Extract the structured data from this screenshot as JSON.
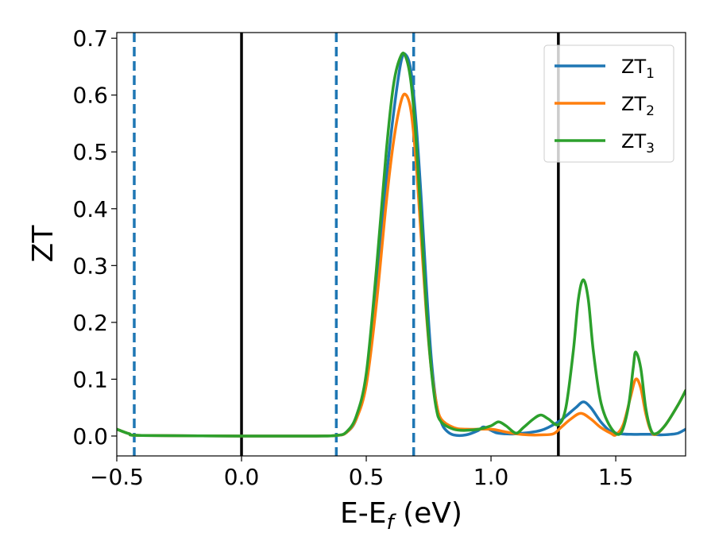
{
  "chart_data": {
    "type": "line",
    "title": "",
    "xlabel": "E-E",
    "xlabel_sub": "f",
    "xlabel_unit": " (eV)",
    "ylabel": "ZT",
    "xlim": [
      -0.5,
      1.78
    ],
    "ylim": [
      -0.035,
      0.71
    ],
    "xticks": [
      -0.5,
      0.0,
      0.5,
      1.0,
      1.5
    ],
    "xtick_labels": [
      "−0.5",
      "0.0",
      "0.5",
      "1.0",
      "1.5"
    ],
    "yticks": [
      0.0,
      0.1,
      0.2,
      0.3,
      0.4,
      0.5,
      0.6,
      0.7
    ],
    "ytick_labels": [
      "0.0",
      "0.1",
      "0.2",
      "0.3",
      "0.4",
      "0.5",
      "0.6",
      "0.7"
    ],
    "grid": false,
    "legend_position": "top-right",
    "vlines": [
      {
        "x": -0.43,
        "style": "dashed",
        "color": "#1f77b4"
      },
      {
        "x": 0.0,
        "style": "solid",
        "color": "#000000"
      },
      {
        "x": 0.38,
        "style": "dashed",
        "color": "#1f77b4"
      },
      {
        "x": 0.69,
        "style": "dashed",
        "color": "#1f77b4"
      },
      {
        "x": 1.27,
        "style": "solid",
        "color": "#000000"
      }
    ],
    "series": [
      {
        "name": "ZT",
        "sub": "1",
        "color": "#1f77b4",
        "x": [
          -0.5,
          -0.45,
          -0.4,
          0.0,
          0.3,
          0.38,
          0.42,
          0.46,
          0.5,
          0.54,
          0.58,
          0.61,
          0.64,
          0.66,
          0.68,
          0.7,
          0.72,
          0.74,
          0.76,
          0.78,
          0.8,
          0.82,
          0.85,
          0.9,
          0.95,
          0.97,
          1.0,
          1.03,
          1.1,
          1.2,
          1.27,
          1.3,
          1.34,
          1.37,
          1.4,
          1.44,
          1.48,
          1.52,
          1.56,
          1.6,
          1.64,
          1.68,
          1.72,
          1.75,
          1.78
        ],
        "y": [
          0.012,
          0.004,
          0.001,
          0.0,
          0.0,
          0.001,
          0.006,
          0.03,
          0.1,
          0.26,
          0.45,
          0.57,
          0.66,
          0.67,
          0.64,
          0.55,
          0.42,
          0.27,
          0.14,
          0.06,
          0.025,
          0.01,
          0.002,
          0.002,
          0.01,
          0.016,
          0.01,
          0.005,
          0.004,
          0.01,
          0.025,
          0.035,
          0.05,
          0.06,
          0.05,
          0.025,
          0.008,
          0.004,
          0.003,
          0.003,
          0.003,
          0.002,
          0.003,
          0.005,
          0.012
        ]
      },
      {
        "name": "ZT",
        "sub": "2",
        "color": "#ff7f0e",
        "x": [
          -0.5,
          -0.45,
          -0.4,
          0.0,
          0.3,
          0.38,
          0.42,
          0.46,
          0.5,
          0.54,
          0.58,
          0.61,
          0.64,
          0.66,
          0.68,
          0.7,
          0.72,
          0.74,
          0.76,
          0.78,
          0.8,
          0.85,
          0.9,
          1.0,
          1.05,
          1.1,
          1.15,
          1.2,
          1.25,
          1.28,
          1.32,
          1.36,
          1.4,
          1.44,
          1.48,
          1.5,
          1.53,
          1.56,
          1.58,
          1.6,
          1.62,
          1.64,
          1.66,
          1.7,
          1.75,
          1.78
        ],
        "y": [
          0.012,
          0.004,
          0.001,
          0.0,
          0.0,
          0.001,
          0.006,
          0.03,
          0.09,
          0.23,
          0.41,
          0.52,
          0.59,
          0.6,
          0.57,
          0.48,
          0.35,
          0.22,
          0.12,
          0.06,
          0.03,
          0.015,
          0.012,
          0.012,
          0.008,
          0.004,
          0.002,
          0.002,
          0.004,
          0.015,
          0.03,
          0.04,
          0.03,
          0.015,
          0.005,
          0.002,
          0.02,
          0.07,
          0.1,
          0.085,
          0.04,
          0.01,
          0.003,
          0.02,
          0.055,
          0.08
        ]
      },
      {
        "name": "ZT",
        "sub": "3",
        "color": "#2ca02c",
        "x": [
          -0.5,
          -0.45,
          -0.4,
          0.0,
          0.3,
          0.38,
          0.42,
          0.46,
          0.5,
          0.54,
          0.58,
          0.61,
          0.64,
          0.66,
          0.68,
          0.7,
          0.72,
          0.74,
          0.76,
          0.78,
          0.8,
          0.85,
          0.9,
          0.95,
          1.0,
          1.03,
          1.06,
          1.1,
          1.13,
          1.17,
          1.2,
          1.23,
          1.27,
          1.3,
          1.33,
          1.35,
          1.37,
          1.39,
          1.41,
          1.44,
          1.48,
          1.52,
          1.55,
          1.57,
          1.58,
          1.6,
          1.62,
          1.64,
          1.66,
          1.7,
          1.75,
          1.78
        ],
        "y": [
          0.012,
          0.004,
          0.001,
          0.0,
          0.0,
          0.001,
          0.007,
          0.035,
          0.11,
          0.29,
          0.5,
          0.62,
          0.67,
          0.665,
          0.62,
          0.52,
          0.38,
          0.23,
          0.12,
          0.05,
          0.025,
          0.012,
          0.01,
          0.012,
          0.018,
          0.025,
          0.018,
          0.005,
          0.015,
          0.03,
          0.037,
          0.03,
          0.02,
          0.05,
          0.15,
          0.24,
          0.275,
          0.24,
          0.15,
          0.06,
          0.015,
          0.005,
          0.05,
          0.12,
          0.148,
          0.12,
          0.05,
          0.012,
          0.004,
          0.02,
          0.055,
          0.08
        ]
      }
    ]
  }
}
